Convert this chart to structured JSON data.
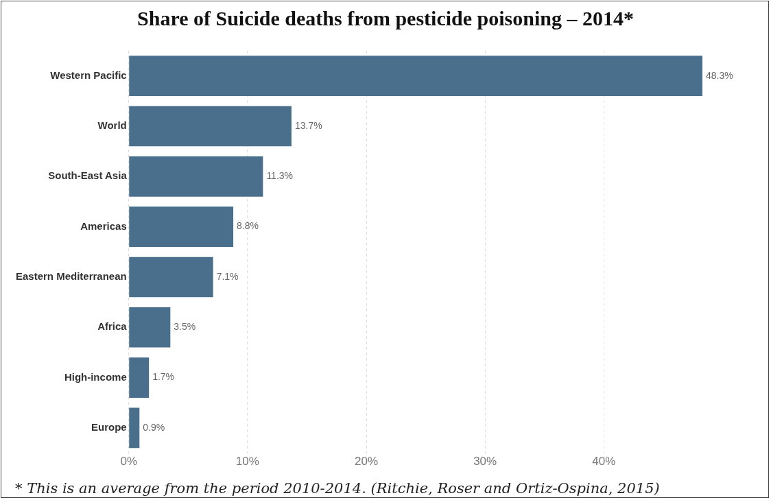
{
  "chart_data": {
    "type": "bar",
    "orientation": "horizontal",
    "title": "Share of Suicide deaths from pesticide poisoning – 2014*",
    "categories": [
      "Western Pacific",
      "World",
      "South-East Asia",
      "Americas",
      "Eastern Mediterranean",
      "Africa",
      "High-income",
      "Europe"
    ],
    "values": [
      48.3,
      13.7,
      11.3,
      8.8,
      7.1,
      3.5,
      1.7,
      0.9
    ],
    "value_labels": [
      "48.3%",
      "13.7%",
      "11.3%",
      "8.8%",
      "7.1%",
      "3.5%",
      "1.7%",
      "0.9%"
    ],
    "color": "#4a6f8c",
    "xlim": [
      0,
      48.3
    ],
    "xticks": [
      {
        "value": 0,
        "label": "0%"
      },
      {
        "value": 10,
        "label": "10%"
      },
      {
        "value": 20,
        "label": "20%"
      },
      {
        "value": 30,
        "label": "30%"
      },
      {
        "value": 40,
        "label": "40%"
      }
    ],
    "grid": "x",
    "legend": false,
    "annotations": [
      "* This is an average from the period 2010-2014. (Ritchie, Roser and Ortiz-Ospina, 2015)"
    ]
  }
}
